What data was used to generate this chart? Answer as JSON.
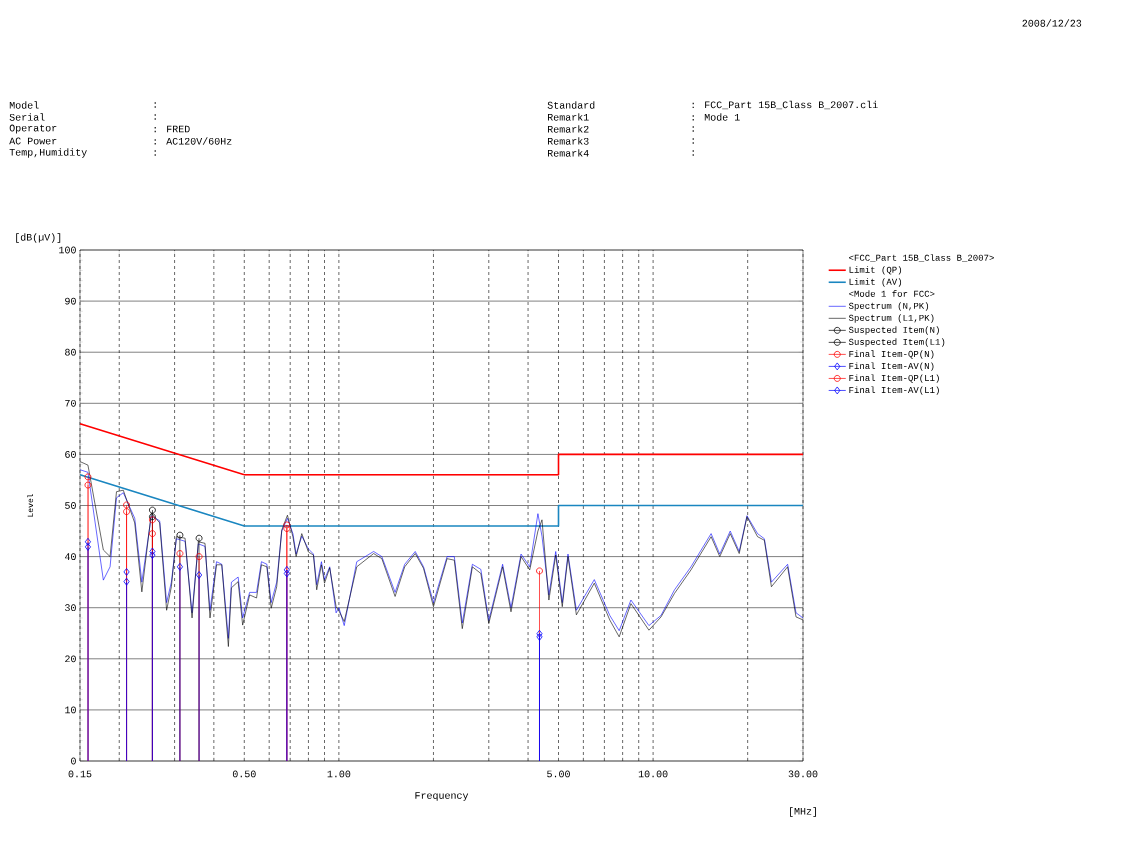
{
  "chart_data": {
    "type": "line",
    "xlabel": "Frequency",
    "ylabel": "Level",
    "legend_title": "<FCC_Part 15B_Class B_2007>",
    "log": "x",
    "grid": true,
    "legend": "right",
    "xlim": [
      0.15,
      30
    ],
    "ylim": [
      0,
      100
    ],
    "xticks": [
      {
        "value": 0.15,
        "label": "0.15"
      },
      {
        "value": 0.2,
        "label": null
      },
      {
        "value": 0.3,
        "label": null
      },
      {
        "value": 0.4,
        "label": null
      },
      {
        "value": 0.5,
        "label": "0.50"
      },
      {
        "value": 0.6,
        "label": null
      },
      {
        "value": 0.7,
        "label": null
      },
      {
        "value": 0.8,
        "label": null
      },
      {
        "value": 0.9,
        "label": null
      },
      {
        "value": 1,
        "label": "1.00"
      },
      {
        "value": 2,
        "label": null
      },
      {
        "value": 3,
        "label": null
      },
      {
        "value": 4,
        "label": null
      },
      {
        "value": 5,
        "label": "5.00"
      },
      {
        "value": 6,
        "label": null
      },
      {
        "value": 7,
        "label": null
      },
      {
        "value": 8,
        "label": null
      },
      {
        "value": 9,
        "label": null
      },
      {
        "value": 10,
        "label": "10.00"
      },
      {
        "value": 20,
        "label": null
      },
      {
        "value": 30,
        "label": "30.00"
      }
    ],
    "yticks": [
      0,
      10,
      20,
      30,
      40,
      50,
      60,
      70,
      80,
      90,
      100
    ],
    "annotations": [
      "Model",
      ":",
      "Serial",
      ":",
      "Operator",
      ": FRED",
      "AC Power",
      ": AC120V/60Hz",
      "Temp,Humidity",
      ":",
      "Standard",
      ": FCC_Part 15B_Class B_2007.cli",
      "Remark1",
      ": Mode 1",
      "Remark2",
      ":",
      "Remark3",
      ":",
      "Remark4",
      ":",
      "2008/12/23",
      "[dB(µV)]",
      "[MHz]",
      "<Mode 1 for FCC>"
    ],
    "series": [
      {
        "name": "Limit (QP)",
        "color": "#ff0000",
        "marker": "none",
        "x": [
          0.15,
          0.5,
          5,
          5,
          30
        ],
        "values": [
          66,
          56,
          56,
          60,
          60
        ]
      },
      {
        "name": "Limit (AV)",
        "color": "#1a86c0",
        "marker": "none",
        "x": [
          0.15,
          0.5,
          5,
          5,
          30
        ],
        "values": [
          56,
          46,
          46,
          50,
          50
        ]
      },
      {
        "name": "Spectrum (N,PK)",
        "color": "#0000ff",
        "marker": "none",
        "x": [
          0.15,
          0.159,
          0.178,
          0.187,
          0.196,
          0.206,
          0.224,
          0.236,
          0.253,
          0.269,
          0.283,
          0.293,
          0.304,
          0.324,
          0.341,
          0.357,
          0.375,
          0.389,
          0.408,
          0.424,
          0.445,
          0.455,
          0.478,
          0.494,
          0.52,
          0.547,
          0.567,
          0.59,
          0.609,
          0.634,
          0.658,
          0.686,
          0.714,
          0.731,
          0.762,
          0.8,
          0.83,
          0.85,
          0.88,
          0.9,
          0.935,
          0.98,
          1.0,
          1.04,
          1.14,
          1.29,
          1.37,
          1.51,
          1.62,
          1.75,
          1.86,
          2.0,
          2.21,
          2.33,
          2.47,
          2.66,
          2.83,
          3.0,
          3.32,
          3.53,
          3.8,
          4.05,
          4.3,
          4.43,
          4.66,
          4.9,
          5.14,
          5.36,
          5.7,
          6.5,
          7.28,
          7.8,
          8.5,
          9.7,
          10.6,
          11.7,
          13.2,
          15.3,
          16.3,
          17.6,
          18.8,
          19.9,
          21.5,
          22.6,
          23.8,
          26.8,
          28.5,
          30
        ],
        "values": [
          57.0,
          56.5,
          35.4,
          38.0,
          51.5,
          52.5,
          47.5,
          35.0,
          48.0,
          47.0,
          31.0,
          35.0,
          43.5,
          43.0,
          29.0,
          42.5,
          42.0,
          29.5,
          39.0,
          38.5,
          24.0,
          35.0,
          36.0,
          28.0,
          33.0,
          33.0,
          39.0,
          38.5,
          31.0,
          35.0,
          45.0,
          47.5,
          44.5,
          40.5,
          44.0,
          41.5,
          40.5,
          34.5,
          39.0,
          35.5,
          38.0,
          29.0,
          30.0,
          26.5,
          39.0,
          41.0,
          40.0,
          33.0,
          38.5,
          41.0,
          38.0,
          31.0,
          40.0,
          40.0,
          27.0,
          38.5,
          37.5,
          27.5,
          38.5,
          30.0,
          40.5,
          38.0,
          48.4,
          44.0,
          32.5,
          41.0,
          31.0,
          40.5,
          29.5,
          35.5,
          28.5,
          25.5,
          31.5,
          26.5,
          28.5,
          33.5,
          38.0,
          44.5,
          40.5,
          45.0,
          41.0,
          48.0,
          44.5,
          43.5,
          35.0,
          38.5,
          29.0,
          28.0
        ]
      },
      {
        "name": "Spectrum (L1,PK)",
        "color": "#000000",
        "marker": "none",
        "x": [
          0.15,
          0.159,
          0.178,
          0.187,
          0.196,
          0.206,
          0.224,
          0.236,
          0.253,
          0.269,
          0.283,
          0.293,
          0.304,
          0.324,
          0.341,
          0.357,
          0.375,
          0.389,
          0.408,
          0.424,
          0.445,
          0.455,
          0.478,
          0.494,
          0.52,
          0.547,
          0.567,
          0.59,
          0.609,
          0.634,
          0.658,
          0.686,
          0.714,
          0.731,
          0.762,
          0.8,
          0.83,
          0.85,
          0.88,
          0.9,
          0.935,
          0.98,
          1.0,
          1.04,
          1.14,
          1.29,
          1.37,
          1.51,
          1.62,
          1.75,
          1.86,
          2.0,
          2.21,
          2.33,
          2.47,
          2.66,
          2.83,
          3.0,
          3.32,
          3.53,
          3.8,
          4.05,
          4.3,
          4.43,
          4.66,
          4.9,
          5.14,
          5.36,
          5.7,
          6.5,
          7.28,
          7.8,
          8.5,
          9.7,
          10.6,
          11.7,
          13.2,
          15.3,
          16.3,
          17.6,
          18.8,
          19.9,
          21.5,
          22.6,
          23.8,
          26.8,
          28.5,
          30
        ],
        "values": [
          58.6,
          57.9,
          41.3,
          40.0,
          52.7,
          53.0,
          46.6,
          33.1,
          48.5,
          46.6,
          29.5,
          34.1,
          43.9,
          43.6,
          28.0,
          42.9,
          42.6,
          28.0,
          38.4,
          38.4,
          22.4,
          33.9,
          35.1,
          26.6,
          32.5,
          31.9,
          38.4,
          38.0,
          29.9,
          34.1,
          45.2,
          48.1,
          43.9,
          40.0,
          44.5,
          40.9,
          40.3,
          33.5,
          38.4,
          34.8,
          37.8,
          30.2,
          29.4,
          27.3,
          38.0,
          40.6,
          39.6,
          32.2,
          38.0,
          40.6,
          37.7,
          30.2,
          39.6,
          39.3,
          25.9,
          38.0,
          36.7,
          26.9,
          38.0,
          29.2,
          40.0,
          37.4,
          45.0,
          47.2,
          31.5,
          40.3,
          30.2,
          40.0,
          28.6,
          34.8,
          27.6,
          24.3,
          30.8,
          25.6,
          28.2,
          32.8,
          37.4,
          43.9,
          40.0,
          44.5,
          40.6,
          47.8,
          43.9,
          43.2,
          34.1,
          38.0,
          28.2,
          27.6
        ]
      },
      {
        "name": "Suspected Item(N)",
        "type": "lollipop",
        "color": "#000000",
        "marker": "circle",
        "x": [
          0.255,
          0.312
        ],
        "values": [
          49.1,
          44.2
        ]
      },
      {
        "name": "Suspected Item(L1)",
        "type": "lollipop",
        "color": "#000000",
        "marker": "circle",
        "x": [
          0.255,
          0.359
        ],
        "values": [
          47.8,
          43.6
        ]
      },
      {
        "name": "Final Item-QP(N)",
        "type": "lollipop",
        "color": "#ff0000",
        "marker": "circle",
        "x": [
          0.159,
          0.211,
          0.255,
          0.312,
          0.683,
          4.35
        ],
        "values": [
          55.6,
          50.1,
          47.2,
          40.6,
          46.2,
          37.2
        ]
      },
      {
        "name": "Final Item-AV(N)",
        "type": "lollipop",
        "color": "#0000ff",
        "marker": "diamond",
        "x": [
          0.159,
          0.211,
          0.255,
          0.312,
          0.683,
          4.35
        ],
        "values": [
          42.9,
          37.0,
          41.0,
          38.0,
          37.4,
          24.9
        ]
      },
      {
        "name": "Final Item-QP(L1)",
        "type": "lollipop",
        "color": "#ff0000",
        "marker": "circle",
        "x": [
          0.159,
          0.211,
          0.255,
          0.359,
          0.683
        ],
        "values": [
          54.0,
          48.8,
          44.5,
          40.0,
          45.5
        ]
      },
      {
        "name": "Final Item-AV(L1)",
        "type": "lollipop",
        "color": "#0000ff",
        "marker": "diamond",
        "x": [
          0.159,
          0.211,
          0.255,
          0.359,
          0.683,
          4.35
        ],
        "values": [
          41.9,
          35.1,
          40.3,
          36.4,
          36.7,
          24.3
        ]
      }
    ]
  }
}
